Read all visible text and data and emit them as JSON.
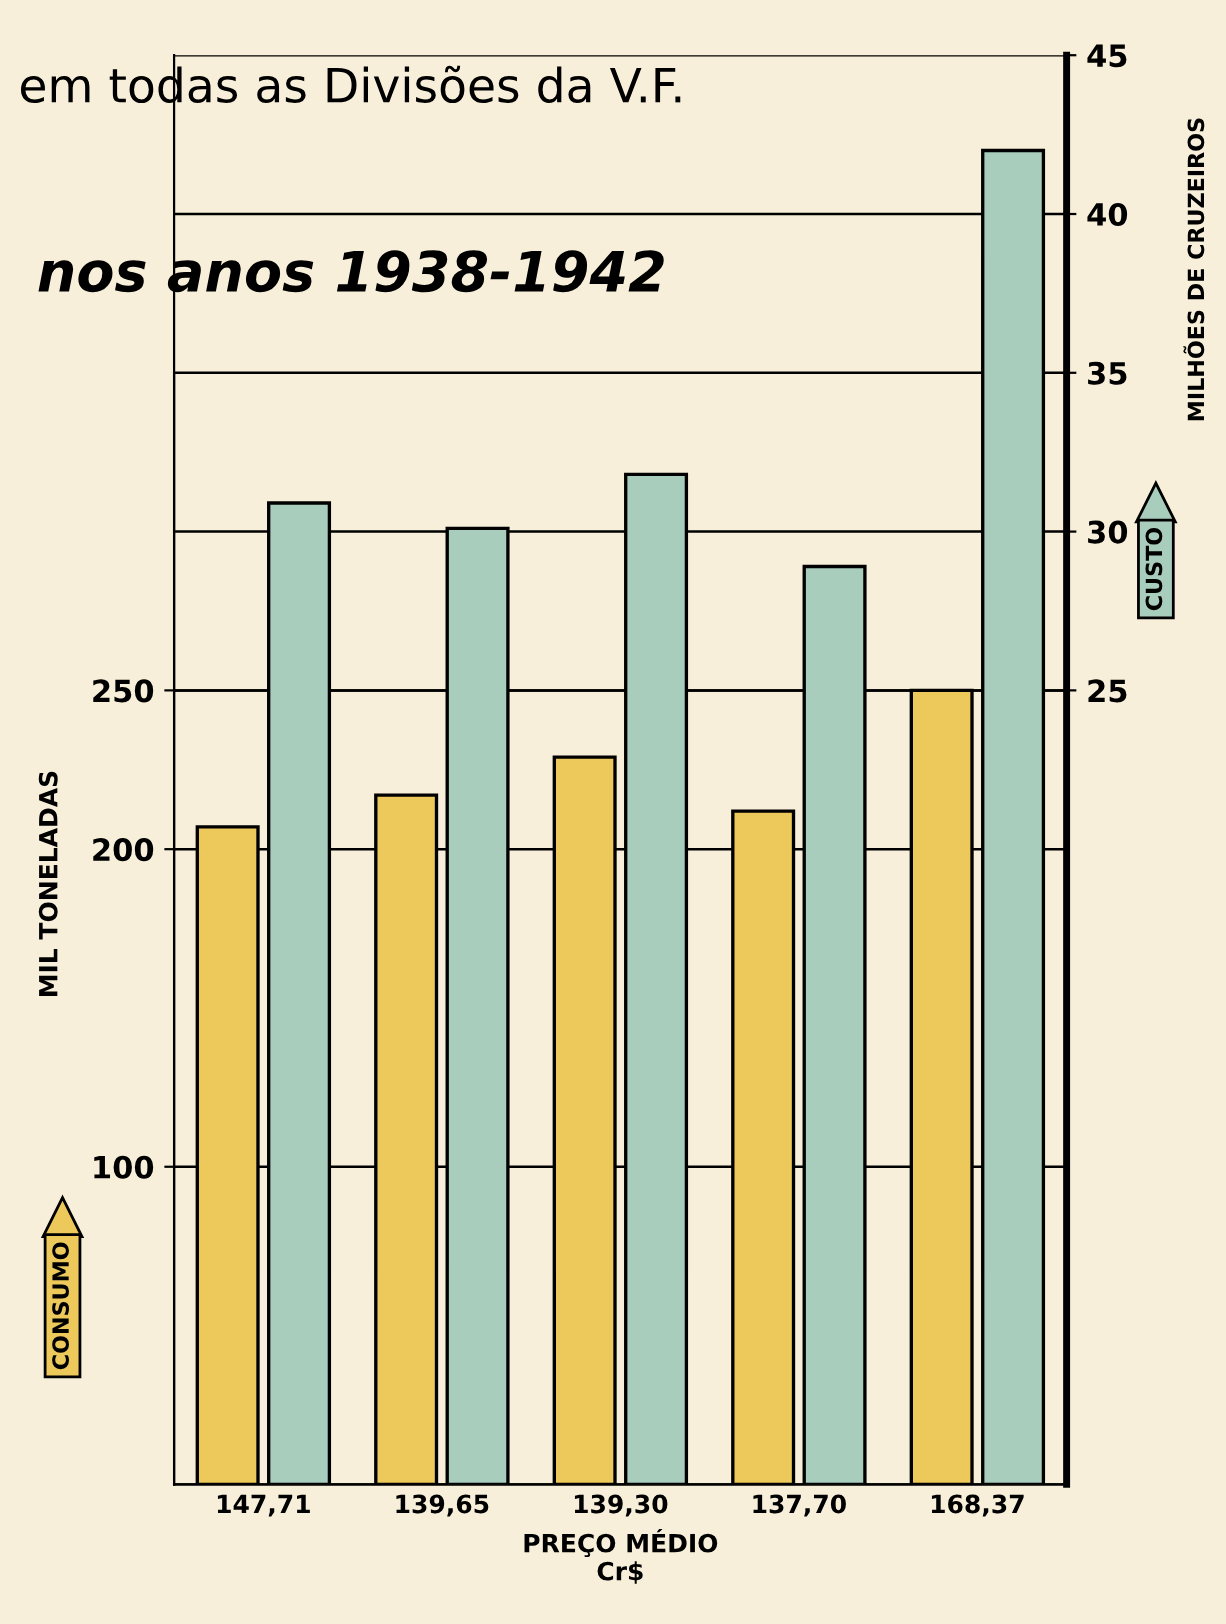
{
  "chart_data": {
    "type": "bar",
    "title": "em todas as Divisões da V.F.",
    "subtitle": "nos anos 1938-1942",
    "categories": [
      "147,71",
      "139,65",
      "139,30",
      "137,70",
      "168,37"
    ],
    "xlabel": "PREÇO MÉDIO\nCr$",
    "ylabel": "MIL TONELADAS",
    "y2label": "MILHÕES DE CRUZEIROS",
    "series": [
      {
        "name": "CONSUMO",
        "color": "#ecc95a",
        "values": [
          207,
          217,
          229,
          212,
          250
        ]
      },
      {
        "name": "CUSTO",
        "color": "#a9cdbd",
        "values": [
          30.9,
          30.1,
          31.8,
          28.9,
          42.0
        ],
        "axis": "y2"
      }
    ],
    "ylim": [
      0,
      450
    ],
    "yticks": [
      100,
      200,
      250
    ],
    "y2lim": [
      0,
      45
    ],
    "y2ticks": [
      25,
      30,
      35,
      40,
      45
    ],
    "grid": "y",
    "legend": "left"
  }
}
